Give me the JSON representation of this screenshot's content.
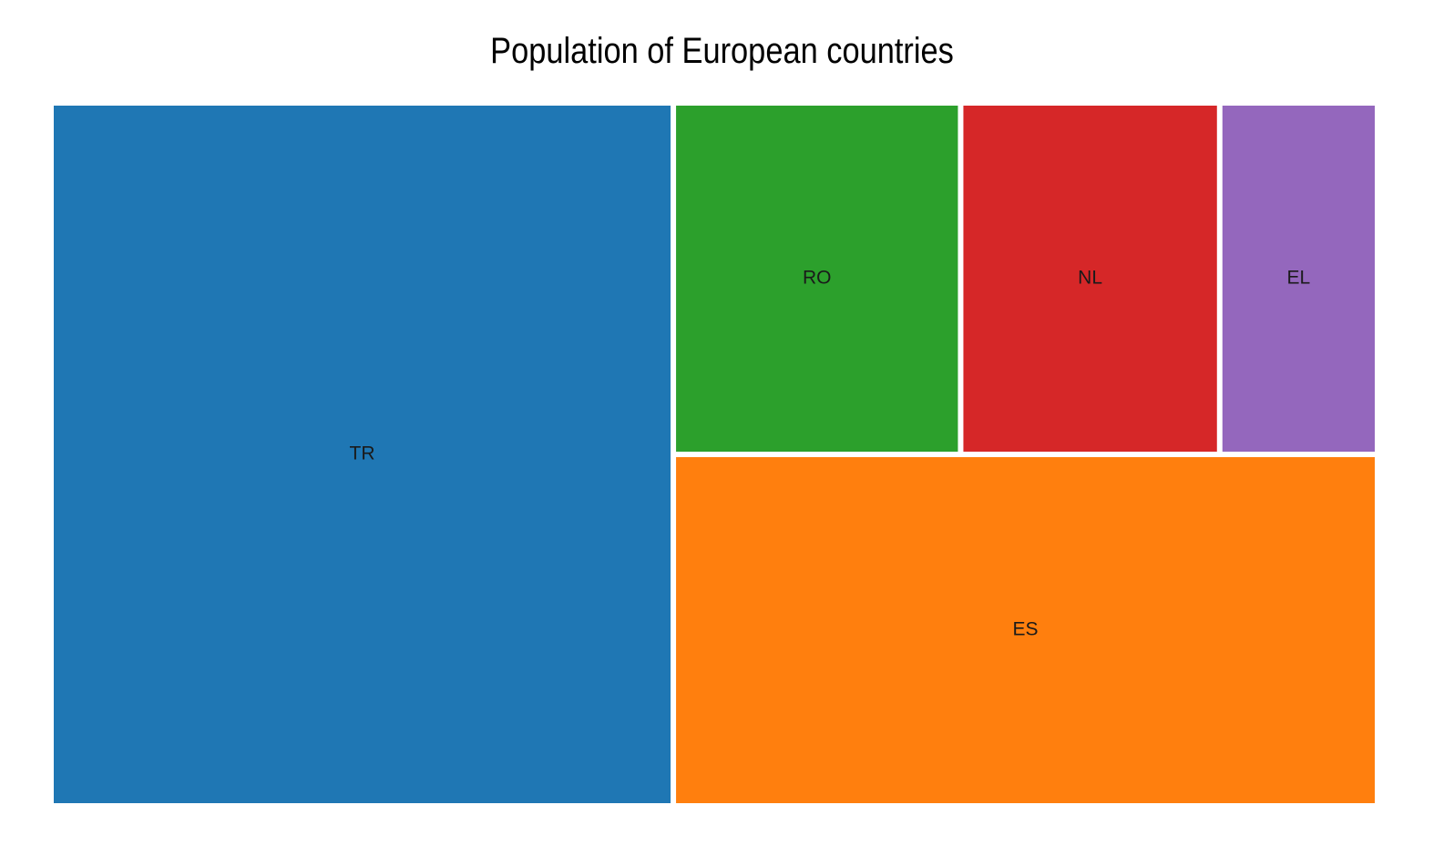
{
  "chart_data": {
    "type": "treemap",
    "title": "Population of European countries",
    "colors": {
      "TR": "#1f77b4",
      "ES": "#ff7f0e",
      "RO": "#2ca02c",
      "NL": "#d62728",
      "EL": "#9467bd"
    },
    "items": [
      {
        "label": "TR",
        "value": 83.6
      },
      {
        "label": "ES",
        "value": 47.3
      },
      {
        "label": "RO",
        "value": 19.3
      },
      {
        "label": "NL",
        "value": 17.4
      },
      {
        "label": "EL",
        "value": 10.6
      }
    ]
  }
}
